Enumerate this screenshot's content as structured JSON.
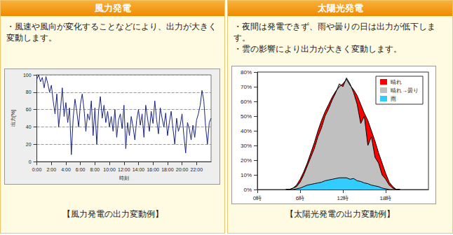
{
  "panels": [
    {
      "header": "風力発電",
      "bullets": [
        "・風速や風向が変化することなどにより、出力が大きく変動します。"
      ],
      "caption": "【風力発電の出力変動例】"
    },
    {
      "header": "太陽光発電",
      "bullets": [
        "・夜間は発電できず、雨や曇りの日は出力が低下します。",
        "・雲の影響により出力が大きく変動します。"
      ],
      "caption": "【太陽光発電の出力変動例】"
    }
  ],
  "chart_data": [
    {
      "type": "line",
      "xlabel": "時刻",
      "ylabel": "出力[%]",
      "x": [
        0,
        0.25,
        0.5,
        0.75,
        1,
        1.25,
        1.5,
        1.75,
        2,
        2.25,
        2.5,
        2.75,
        3,
        3.25,
        3.5,
        3.75,
        4,
        4.25,
        4.5,
        4.75,
        5,
        5.25,
        5.5,
        5.75,
        6,
        6.25,
        6.5,
        6.75,
        7,
        7.25,
        7.5,
        7.75,
        8,
        8.25,
        8.5,
        8.75,
        9,
        9.25,
        9.5,
        9.75,
        10,
        10.25,
        10.5,
        10.75,
        11,
        11.25,
        11.5,
        11.75,
        12,
        12.25,
        12.5,
        12.75,
        13,
        13.25,
        13.5,
        13.75,
        14,
        14.25,
        14.5,
        14.75,
        15,
        15.25,
        15.5,
        15.75,
        16,
        16.25,
        16.5,
        16.75,
        17,
        17.25,
        17.5,
        17.75,
        18,
        18.25,
        18.5,
        18.75,
        19,
        19.25,
        19.5,
        19.75,
        20,
        20.25,
        20.5,
        20.75,
        21,
        21.25,
        21.5,
        21.75,
        22,
        22.25,
        22.5,
        22.75,
        23,
        23.25,
        23.5,
        23.75,
        24
      ],
      "values": [
        95,
        100,
        92,
        97,
        85,
        98,
        90,
        80,
        88,
        70,
        55,
        78,
        40,
        60,
        85,
        52,
        68,
        45,
        62,
        8,
        50,
        72,
        58,
        40,
        66,
        78,
        60,
        35,
        55,
        48,
        70,
        30,
        62,
        20,
        58,
        75,
        50,
        65,
        45,
        58,
        40,
        52,
        35,
        60,
        28,
        48,
        55,
        38,
        65,
        15,
        45,
        30,
        52,
        40,
        25,
        48,
        60,
        42,
        55,
        28,
        65,
        50,
        35,
        58,
        44,
        70,
        48,
        32,
        62,
        50,
        40,
        56,
        30,
        45,
        58,
        38,
        20,
        50,
        35,
        42,
        55,
        30,
        10,
        45,
        38,
        25,
        42,
        28,
        48,
        55,
        65,
        82,
        70,
        40,
        20,
        45,
        50
      ],
      "color": "#1a237e",
      "xlim": [
        0,
        24
      ],
      "xticks": [
        {
          "value": 0,
          "label": "0:00"
        },
        {
          "value": 2,
          "label": "2:00"
        },
        {
          "value": 4,
          "label": "4:00"
        },
        {
          "value": 6,
          "label": "6:00"
        },
        {
          "value": 8,
          "label": "8:00"
        },
        {
          "value": 10,
          "label": "10:00"
        },
        {
          "value": 12,
          "label": "12:00"
        },
        {
          "value": 14,
          "label": "14:00"
        },
        {
          "value": 16,
          "label": "16:00"
        },
        {
          "value": 18,
          "label": "18:00"
        },
        {
          "value": 20,
          "label": "20:00"
        },
        {
          "value": 22,
          "label": "22:00"
        }
      ],
      "ylim": [
        0,
        100
      ],
      "yticks": [
        0,
        20,
        40,
        60,
        80,
        100
      ],
      "grid": true
    },
    {
      "type": "area",
      "legend": "upper right",
      "x": [
        4,
        4.5,
        5,
        5.5,
        6,
        6.5,
        7,
        7.5,
        8,
        8.5,
        9,
        9.5,
        10,
        10.5,
        11,
        11.5,
        12,
        12.5,
        13,
        13.5,
        14,
        14.5,
        15,
        15.5,
        16,
        16.5,
        17,
        17.5,
        18,
        18.5,
        19,
        19.5,
        20
      ],
      "series": [
        {
          "name": "晴れ",
          "color": "#ff0000",
          "values": [
            0,
            0,
            1,
            3,
            7,
            12,
            18,
            25,
            32,
            40,
            47,
            53,
            58,
            63,
            67,
            70,
            72,
            75,
            71,
            68,
            64,
            58,
            52,
            47,
            40,
            33,
            25,
            18,
            11,
            5,
            2,
            0,
            0
          ]
        },
        {
          "name": "晴れ→曇り",
          "color": "#c0c0c0",
          "values": [
            0,
            0,
            1,
            2,
            5,
            10,
            16,
            22,
            28,
            36,
            42,
            50,
            55,
            61,
            66,
            72,
            70,
            76,
            72,
            66,
            58,
            45,
            50,
            30,
            36,
            22,
            18,
            10,
            7,
            3,
            1,
            0,
            0
          ]
        },
        {
          "name": "雨",
          "color": "#33ccff",
          "values": [
            0,
            0,
            0,
            0.5,
            1,
            2,
            3,
            3.5,
            4,
            4.5,
            5,
            6,
            6.5,
            7,
            7.5,
            8,
            8,
            8,
            7,
            7.5,
            6,
            5.5,
            4.5,
            4,
            3,
            2.5,
            2,
            1,
            0.5,
            0,
            0,
            0,
            0
          ]
        }
      ],
      "xlim": [
        0,
        24
      ],
      "xticks": [
        {
          "value": 0,
          "label": "0時"
        },
        {
          "value": 6,
          "label": "6時"
        },
        {
          "value": 12,
          "label": "12時"
        },
        {
          "value": 18,
          "label": "18時"
        }
      ],
      "ylim": [
        0,
        80
      ],
      "yticks": [
        {
          "value": 0,
          "label": "0%"
        },
        {
          "value": 10,
          "label": "10%"
        },
        {
          "value": 20,
          "label": "20%"
        },
        {
          "value": 30,
          "label": "30%"
        },
        {
          "value": 40,
          "label": "40%"
        },
        {
          "value": 50,
          "label": "50%"
        },
        {
          "value": 60,
          "label": "60%"
        },
        {
          "value": 70,
          "label": "70%"
        },
        {
          "value": 80,
          "label": "80%"
        }
      ],
      "grid": false
    }
  ]
}
